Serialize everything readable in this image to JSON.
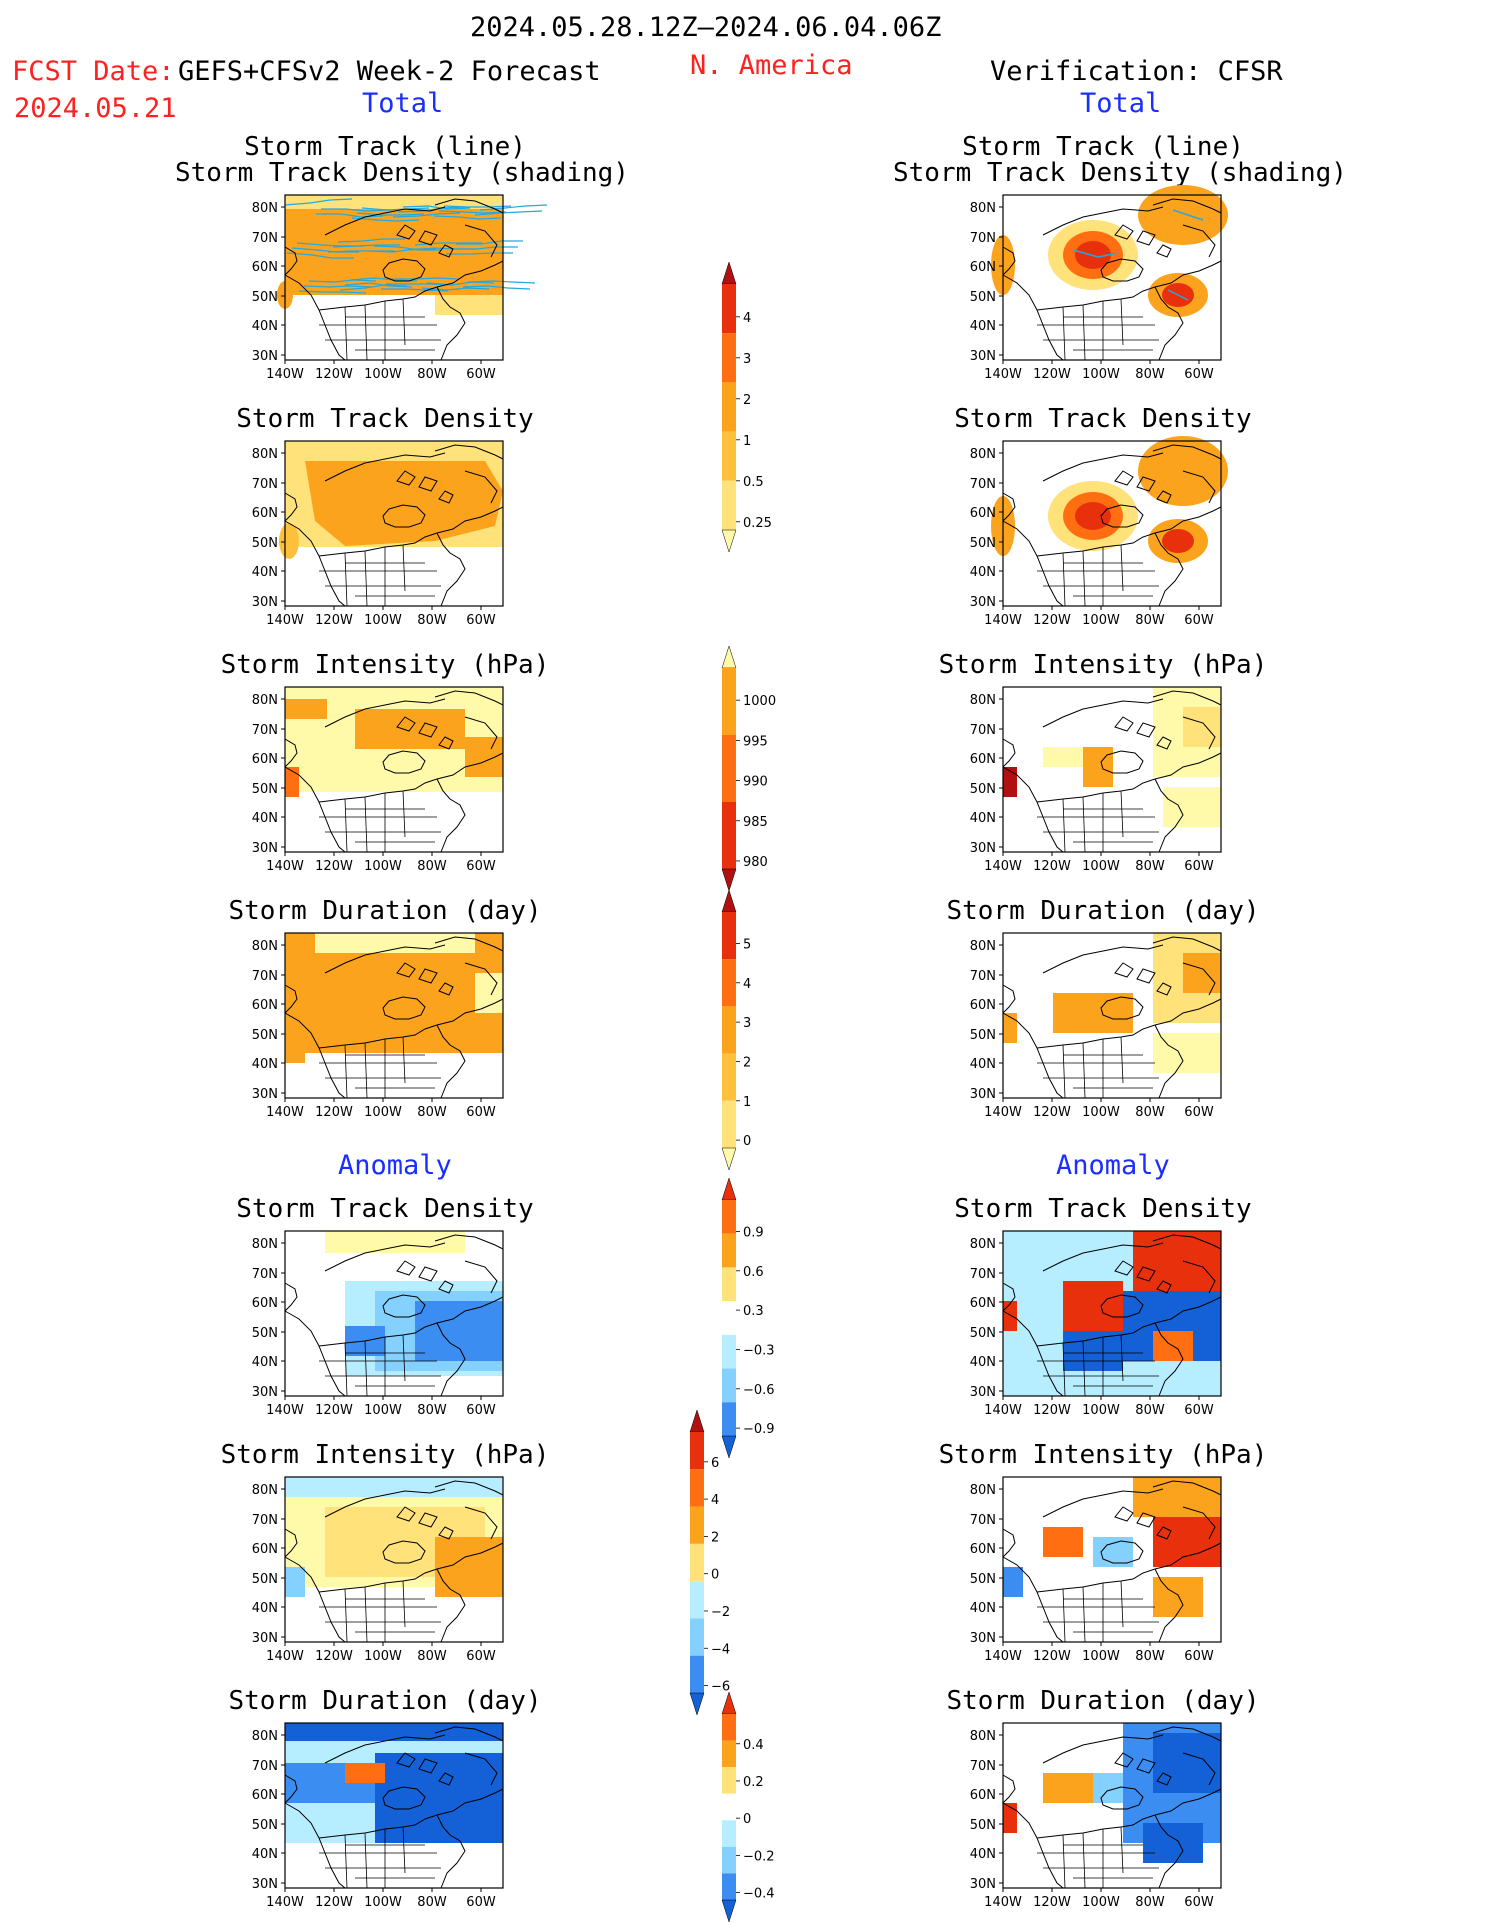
{
  "header": {
    "period": "2024.05.28.12Z–2024.06.04.06Z",
    "fcst_label": "FCST Date:",
    "fcst_model": "GEFS+CFSv2 Week-2 Forecast",
    "fcst_date": "2024.05.21",
    "region": "N. America",
    "verification": "Verification: CFSR"
  },
  "sections": {
    "total": "Total",
    "anomaly": "Anomaly"
  },
  "panel_titles": {
    "track_line": "Storm Track (line)",
    "track_shading": "Storm Track Density (shading)",
    "density": "Storm Track Density",
    "intensity": "Storm Intensity (hPa)",
    "duration": "Storm Duration (day)"
  },
  "axes": {
    "lat_labels": [
      "80N",
      "70N",
      "60N",
      "50N",
      "40N",
      "30N"
    ],
    "lon_labels": [
      "140W",
      "120W",
      "100W",
      "80W",
      "60W"
    ]
  },
  "colorbars": {
    "density_total": [
      "4",
      "3",
      "2",
      "1",
      "0.5",
      "0.25"
    ],
    "intensity_total": [
      "1000",
      "995",
      "990",
      "985",
      "980"
    ],
    "duration_total": [
      "5",
      "4",
      "3",
      "2",
      "1",
      "0"
    ],
    "density_anom": [
      "0.9",
      "0.6",
      "0.3",
      "−0.3",
      "−0.6",
      "−0.9"
    ],
    "intensity_anom": [
      "6",
      "4",
      "2",
      "0",
      "−2",
      "−4",
      "−6"
    ],
    "duration_anom": [
      "0.4",
      "0.2",
      "0",
      "−0.2",
      "−0.4"
    ]
  },
  "colors": {
    "light_yellow": "#fffaaa",
    "yellow": "#ffe27a",
    "light_orange": "#ffc13b",
    "orange": "#fca31e",
    "dark_orange": "#ff6e10",
    "red": "#e8300c",
    "dark_red": "#b01010",
    "light_blue": "#b7eeff",
    "sky_blue": "#84d0ff",
    "blue": "#3c8df2",
    "dark_blue": "#1460d6",
    "track_line": "#24a8e0"
  }
}
